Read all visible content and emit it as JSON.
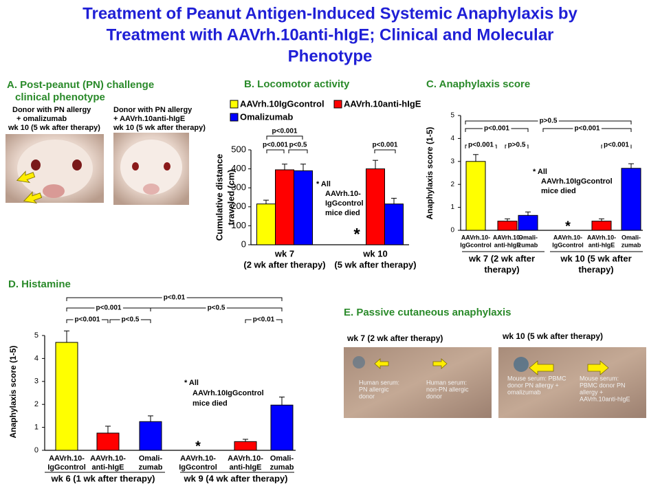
{
  "title": [
    "Treatment of Peanut Antigen-Induced Systemic Anaphylaxis by",
    "Treatment with AAVrh.10anti-hIgE; Clinical and Molecular",
    "Phenotype"
  ],
  "panel_a": {
    "title": [
      "A. Post-peanut (PN) challenge",
      "clinical phenotype"
    ],
    "photos": [
      {
        "caption": [
          "Donor with PN allergy",
          "+ omalizumab",
          "wk 10 (5 wk after therapy)"
        ]
      },
      {
        "caption": [
          "Donor with PN allergy",
          "+ AAVrh.10anti-hIgE",
          "wk 10 (5 wk after therapy)"
        ]
      }
    ]
  },
  "chart_data": [
    {
      "type": "bar",
      "title": "B. Locomotor activity",
      "ylabel": [
        "Cumulative distance",
        "traveled (cm)"
      ],
      "categories": [
        [
          "wk 7",
          "(2 wk after therapy)"
        ],
        [
          "wk 10",
          "(5 wk after therapy)"
        ]
      ],
      "series": [
        {
          "name": "AAVrh.10IgGcontrol",
          "color": "#ffff00",
          "values": [
            215,
            null
          ],
          "errors": [
            20,
            null
          ]
        },
        {
          "name": "AAVrh.10anti-hIgE",
          "color": "#ff0000",
          "values": [
            395,
            400
          ],
          "errors": [
            30,
            45
          ]
        },
        {
          "name": "Omalizumab",
          "color": "#0000ff",
          "values": [
            390,
            215
          ],
          "errors": [
            35,
            30
          ]
        }
      ],
      "ylim": [
        0,
        500
      ],
      "yticks": [
        0,
        100,
        200,
        300,
        400,
        500
      ],
      "legend": "top",
      "significance": [
        "p<0.001",
        "p<0.001",
        "p<0.5",
        "p<0.001"
      ],
      "note": [
        "* All",
        "AAVrh.10-",
        "IgGcontrol",
        "mice died"
      ],
      "null_marker": "*"
    },
    {
      "type": "bar",
      "title": "C. Anaphylaxis score",
      "ylabel": [
        "Anaphylaxis score (1-5)"
      ],
      "categories": [
        [
          "wk 7 (2 wk after",
          "therapy)"
        ],
        [
          "wk 10 (5 wk after",
          "therapy)"
        ]
      ],
      "bar_labels": [
        [
          "AAVrh.10-",
          "IgGcontrol"
        ],
        [
          "AAVrh.10-",
          "anti-hIgE"
        ],
        [
          "Omali-",
          "zumab"
        ]
      ],
      "series": [
        {
          "color": "#ffff00",
          "values": [
            3.0,
            null
          ],
          "errors": [
            0.3,
            null
          ]
        },
        {
          "color": "#ff0000",
          "values": [
            0.4,
            0.4
          ],
          "errors": [
            0.1,
            0.1
          ]
        },
        {
          "color": "#0000ff",
          "values": [
            0.65,
            2.7
          ],
          "errors": [
            0.15,
            0.2
          ]
        }
      ],
      "ylim": [
        0,
        5
      ],
      "yticks": [
        0,
        1,
        2,
        3,
        4,
        5
      ],
      "significance": [
        "p>0.5",
        "p<0.001",
        "p<0.001",
        "p<0.001",
        "p>0.5",
        "p<0.001"
      ],
      "note": [
        "* All",
        "AAVrh.10IgGcontrol",
        "mice died"
      ],
      "null_marker": "*"
    },
    {
      "type": "bar",
      "title": "D. Histamine",
      "ylabel": [
        "Anaphylaxis score (1-5)"
      ],
      "categories": [
        [
          "wk 6 (1 wk after therapy)"
        ],
        [
          "wk 9 (4 wk after therapy)"
        ]
      ],
      "bar_labels": [
        [
          "AAVrh.10-",
          "IgGcontrol"
        ],
        [
          "AAVrh.10-",
          "anti-hIgE"
        ],
        [
          "Omali-",
          "zumab"
        ]
      ],
      "series": [
        {
          "color": "#ffff00",
          "values": [
            4.7,
            null
          ],
          "errors": [
            0.5,
            null
          ]
        },
        {
          "color": "#ff0000",
          "values": [
            0.75,
            0.38
          ],
          "errors": [
            0.3,
            0.1
          ]
        },
        {
          "color": "#0000ff",
          "values": [
            1.25,
            1.97
          ],
          "errors": [
            0.25,
            0.35
          ]
        }
      ],
      "ylim": [
        0,
        5
      ],
      "yticks": [
        0,
        1,
        2,
        3,
        4,
        5
      ],
      "significance": [
        "p<0.01",
        "p<0.001",
        "p<0.5",
        "p<0.001",
        "p<0.5",
        "p<0.01"
      ],
      "note": [
        "* All",
        "AAVrh.10IgGcontrol",
        "mice died"
      ],
      "null_marker": "*"
    }
  ],
  "panel_e": {
    "title": "E. Passive cutaneous anaphylaxis",
    "photos": [
      {
        "header": "wk 7 (2 wk after therapy)",
        "labels": [
          [
            "Human serum:",
            "PN allergic",
            "donor"
          ],
          [
            "Human serum:",
            "non-PN allergic",
            " donor"
          ]
        ]
      },
      {
        "header": "wk 10 (5 wk after therapy)",
        "labels": [
          [
            "Mouse serum: PBMC",
            "donor PN  allergy +",
            "omalizumab"
          ],
          [
            "Mouse serum:",
            "PBMC donor  PN",
            "allergy +",
            "AAVrh.10anti-hIgE"
          ]
        ]
      }
    ]
  }
}
